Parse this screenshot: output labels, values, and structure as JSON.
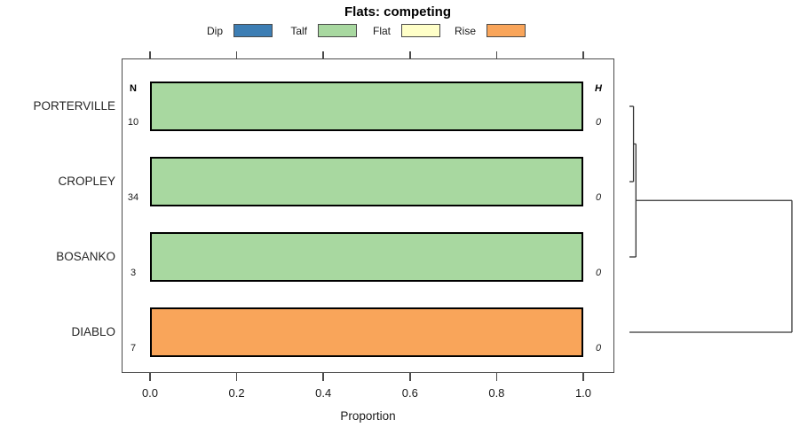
{
  "chart_data": {
    "type": "bar",
    "orientation": "horizontal",
    "title": "Flats: competing",
    "xlabel": "Proportion",
    "xlim": [
      0,
      1
    ],
    "xtick_labels": [
      "0.0",
      "0.2",
      "0.4",
      "0.6",
      "0.8",
      "1.0"
    ],
    "grid": false,
    "legend_position": "top",
    "n_column_header": "N",
    "h_column_header": "H",
    "legend": [
      {
        "label": "Dip",
        "color": "#3d7eb4"
      },
      {
        "label": "Talf",
        "color": "#a8d8a0"
      },
      {
        "label": "Flat",
        "color": "#ffffc8"
      },
      {
        "label": "Rise",
        "color": "#f9a55a"
      }
    ],
    "rows": [
      {
        "label": "PORTERVILLE",
        "n": "10",
        "h": "0",
        "segments": [
          {
            "category": "Talf",
            "value": 1.0
          }
        ]
      },
      {
        "label": "CROPLEY",
        "n": "34",
        "h": "0",
        "segments": [
          {
            "category": "Talf",
            "value": 1.0
          }
        ]
      },
      {
        "label": "BOSANKO",
        "n": "3",
        "h": "0",
        "segments": [
          {
            "category": "Talf",
            "value": 1.0
          }
        ]
      },
      {
        "label": "DIABLO",
        "n": "7",
        "h": "0",
        "segments": [
          {
            "category": "Rise",
            "value": 1.0
          }
        ]
      }
    ],
    "dendrogram": {
      "leaf_order": [
        "PORTERVILLE",
        "CROPLEY",
        "BOSANKO",
        "DIABLO"
      ],
      "merges": [
        {
          "a": "leaf:0",
          "b": "leaf:1",
          "height": 0.025
        },
        {
          "a": "merge:0",
          "b": "leaf:2",
          "height": 0.04
        },
        {
          "a": "merge:1",
          "b": "leaf:3",
          "height": 1.0
        }
      ]
    }
  }
}
